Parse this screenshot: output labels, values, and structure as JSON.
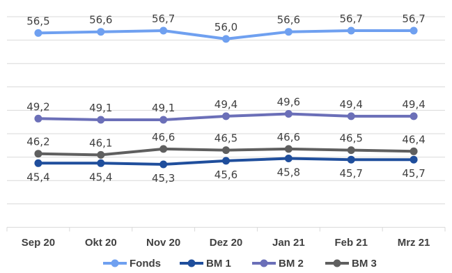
{
  "chart_data": {
    "type": "line",
    "categories": [
      "Sep 20",
      "Okt 20",
      "Nov 20",
      "Dez 20",
      "Jan 21",
      "Feb 21",
      "Mrz 21"
    ],
    "series": [
      {
        "name": "Fonds",
        "color": "#6fa0f0",
        "values": [
          56.5,
          56.6,
          56.7,
          56.0,
          56.6,
          56.7,
          56.7
        ],
        "labels": [
          "56,5",
          "56,6",
          "56,7",
          "56,0",
          "56,6",
          "56,7",
          "56,7"
        ]
      },
      {
        "name": "BM 1",
        "color": "#1f4e9c",
        "values": [
          45.4,
          45.4,
          45.3,
          45.6,
          45.8,
          45.7,
          45.7
        ],
        "labels": [
          "45,4",
          "45,4",
          "45,3",
          "45,6",
          "45,8",
          "45,7",
          "45,7"
        ]
      },
      {
        "name": "BM 2",
        "color": "#6b6fb8",
        "values": [
          49.2,
          49.1,
          49.1,
          49.4,
          49.6,
          49.4,
          49.4
        ],
        "labels": [
          "49,2",
          "49,1",
          "49,1",
          "49,4",
          "49,6",
          "49,4",
          "49,4"
        ]
      },
      {
        "name": "BM 3",
        "color": "#5f5f5f",
        "values": [
          46.2,
          46.1,
          46.6,
          46.5,
          46.6,
          46.5,
          46.4
        ],
        "labels": [
          "46,2",
          "46,1",
          "46,6",
          "46,5",
          "46,6",
          "46,5",
          "46,4"
        ]
      }
    ],
    "grid": true,
    "legend_position": "bottom",
    "title": "",
    "xlabel": "",
    "ylabel": ""
  }
}
